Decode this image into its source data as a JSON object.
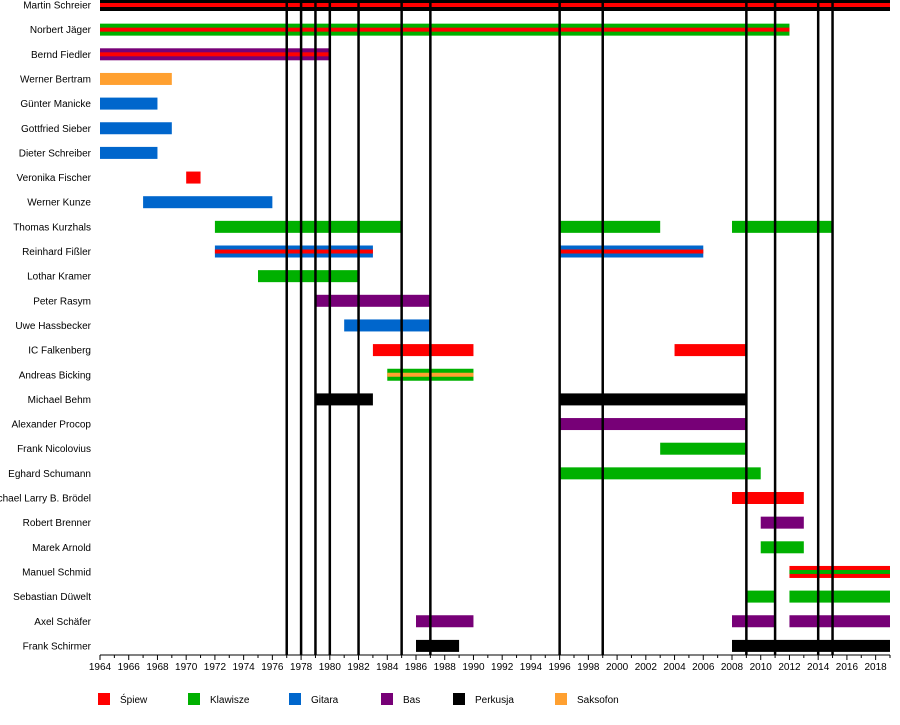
{
  "chart_data": {
    "type": "timeline",
    "title": "",
    "xlim": [
      1964,
      2019
    ],
    "x_tick_labels": [
      1964,
      1966,
      1968,
      1970,
      1972,
      1974,
      1976,
      1978,
      1980,
      1982,
      1984,
      1986,
      1988,
      1990,
      1992,
      1994,
      1996,
      1998,
      2000,
      2002,
      2004,
      2006,
      2008,
      2010,
      2012,
      2014,
      2016,
      2018
    ],
    "colors": {
      "spiew": "#ff0000",
      "klawisze": "#00b000",
      "gitara": "#0066cc",
      "bas": "#770077",
      "perkusja": "#000000",
      "saksofon": "#ffa030"
    },
    "legend": [
      {
        "key": "spiew",
        "label": "Śpiew"
      },
      {
        "key": "klawisze",
        "label": "Klawisze"
      },
      {
        "key": "gitara",
        "label": "Gitara"
      },
      {
        "key": "bas",
        "label": "Bas"
      },
      {
        "key": "perkusja",
        "label": "Perkusja"
      },
      {
        "key": "saksofon",
        "label": "Saksofon"
      }
    ],
    "marker_years": [
      1977,
      1978,
      1979,
      1980,
      1982,
      1985,
      1987,
      1996,
      1999,
      2009,
      2011,
      2014,
      2015
    ],
    "members": [
      {
        "name": "Martin Schreier",
        "bars": [
          {
            "start": 1964,
            "end": 2019,
            "main": "perkusja",
            "stripe": "spiew"
          }
        ]
      },
      {
        "name": "Norbert Jäger",
        "bars": [
          {
            "start": 1964,
            "end": 2012,
            "main": "klawisze",
            "stripe": "spiew"
          }
        ]
      },
      {
        "name": "Bernd Fiedler",
        "bars": [
          {
            "start": 1964,
            "end": 1980,
            "main": "bas",
            "stripe": "spiew"
          }
        ]
      },
      {
        "name": "Werner Bertram",
        "bars": [
          {
            "start": 1964,
            "end": 1969,
            "main": "saksofon"
          }
        ]
      },
      {
        "name": "Günter Manicke",
        "bars": [
          {
            "start": 1964,
            "end": 1968,
            "main": "gitara"
          }
        ]
      },
      {
        "name": "Gottfried Sieber",
        "bars": [
          {
            "start": 1964,
            "end": 1969,
            "main": "gitara"
          }
        ]
      },
      {
        "name": "Dieter Schreiber",
        "bars": [
          {
            "start": 1964,
            "end": 1968,
            "main": "gitara"
          }
        ]
      },
      {
        "name": "Veronika Fischer",
        "bars": [
          {
            "start": 1970,
            "end": 1971,
            "main": "spiew"
          }
        ]
      },
      {
        "name": "Werner Kunze",
        "bars": [
          {
            "start": 1967,
            "end": 1976,
            "main": "gitara"
          }
        ]
      },
      {
        "name": "Thomas Kurzhals",
        "bars": [
          {
            "start": 1972,
            "end": 1985,
            "main": "klawisze"
          },
          {
            "start": 1996,
            "end": 2003,
            "main": "klawisze"
          },
          {
            "start": 2008,
            "end": 2015,
            "main": "klawisze"
          }
        ]
      },
      {
        "name": "Reinhard Fißler",
        "bars": [
          {
            "start": 1972,
            "end": 1983,
            "main": "gitara",
            "stripe": "spiew"
          },
          {
            "start": 1996,
            "end": 2006,
            "main": "gitara",
            "stripe": "spiew"
          }
        ]
      },
      {
        "name": "Lothar Kramer",
        "bars": [
          {
            "start": 1975,
            "end": 1982,
            "main": "klawisze"
          }
        ]
      },
      {
        "name": "Peter Rasym",
        "bars": [
          {
            "start": 1979,
            "end": 1987,
            "main": "bas"
          }
        ]
      },
      {
        "name": "Uwe Hassbecker",
        "bars": [
          {
            "start": 1981,
            "end": 1987,
            "main": "gitara"
          }
        ]
      },
      {
        "name": "IC Falkenberg",
        "bars": [
          {
            "start": 1983,
            "end": 1990,
            "main": "spiew"
          },
          {
            "start": 2004,
            "end": 2009,
            "main": "spiew"
          }
        ]
      },
      {
        "name": "Andreas Bicking",
        "bars": [
          {
            "start": 1984,
            "end": 1990,
            "main": "klawisze",
            "stripe": "saksofon"
          }
        ]
      },
      {
        "name": "Michael Behm",
        "bars": [
          {
            "start": 1979,
            "end": 1983,
            "main": "perkusja"
          },
          {
            "start": 1996,
            "end": 2009,
            "main": "perkusja"
          }
        ]
      },
      {
        "name": "Alexander Procop",
        "bars": [
          {
            "start": 1996,
            "end": 2009,
            "main": "bas"
          }
        ]
      },
      {
        "name": "Frank Nicolovius",
        "bars": [
          {
            "start": 2003,
            "end": 2009,
            "main": "klawisze"
          }
        ]
      },
      {
        "name": "Eghard Schumann",
        "bars": [
          {
            "start": 1996,
            "end": 2010,
            "main": "klawisze"
          }
        ]
      },
      {
        "name": "Michael Larry B. Brödel",
        "bars": [
          {
            "start": 2008,
            "end": 2013,
            "main": "spiew"
          }
        ]
      },
      {
        "name": "Robert Brenner",
        "bars": [
          {
            "start": 2010,
            "end": 2013,
            "main": "bas"
          }
        ]
      },
      {
        "name": "Marek Arnold",
        "bars": [
          {
            "start": 2010,
            "end": 2013,
            "main": "klawisze"
          }
        ]
      },
      {
        "name": "Manuel Schmid",
        "bars": [
          {
            "start": 2012,
            "end": 2019,
            "main": "spiew",
            "stripe": "klawisze"
          }
        ]
      },
      {
        "name": "Sebastian Düwelt",
        "bars": [
          {
            "start": 2009,
            "end": 2011,
            "main": "klawisze"
          },
          {
            "start": 2012,
            "end": 2019,
            "main": "klawisze"
          }
        ]
      },
      {
        "name": "Axel Schäfer",
        "bars": [
          {
            "start": 1986,
            "end": 1990,
            "main": "bas"
          },
          {
            "start": 2008,
            "end": 2011,
            "main": "bas"
          },
          {
            "start": 2012,
            "end": 2019,
            "main": "bas"
          }
        ]
      },
      {
        "name": "Frank Schirmer",
        "bars": [
          {
            "start": 1986,
            "end": 1989,
            "main": "perkusja"
          },
          {
            "start": 2008,
            "end": 2019,
            "main": "perkusja"
          }
        ]
      }
    ]
  }
}
